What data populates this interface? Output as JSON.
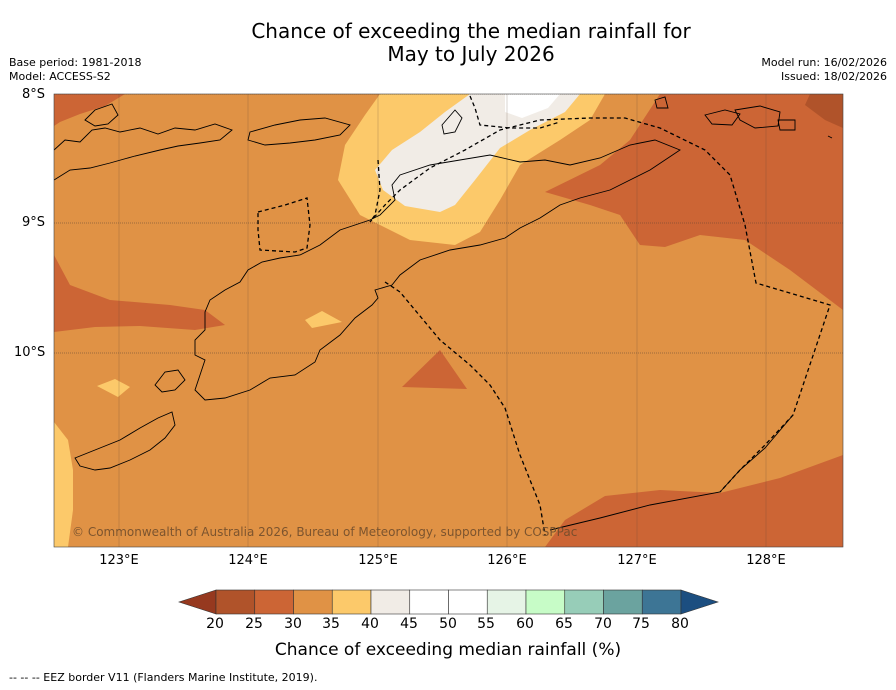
{
  "title": {
    "line1": "Chance of exceeding the median rainfall for",
    "line2": "May to July 2026"
  },
  "meta": {
    "base_period": "Base period: 1981-2018",
    "model": "Model: ACCESS-S2",
    "model_run": "Model run: 16/02/2026",
    "issued": "Issued: 18/02/2026"
  },
  "map": {
    "lat_labels": [
      "8°S",
      "9°S",
      "10°S"
    ],
    "lon_labels": [
      "123°E",
      "124°E",
      "125°E",
      "126°E",
      "127°E",
      "128°E"
    ],
    "copyright": "© Commonwealth of Australia 2026, Bureau of Meteorology, supported by COSPPac",
    "categories": {
      "c20_25": "#b0532a",
      "c25_30": "#cc6535",
      "c30_35": "#e09245",
      "c35_40": "#fcc96a",
      "c40_45": "#f1ece6",
      "c45_55": "#ffffff"
    }
  },
  "colorbar": {
    "ticks": [
      "20",
      "25",
      "30",
      "35",
      "40",
      "45",
      "50",
      "55",
      "60",
      "65",
      "70",
      "75",
      "80"
    ],
    "colors": [
      "#b0532a",
      "#cc6535",
      "#e09245",
      "#fcc96a",
      "#f1ece6",
      "#ffffff",
      "#ffffff",
      "#e6f4e6",
      "#c7fcc7",
      "#97cdb8",
      "#6ba39f",
      "#3d7595"
    ],
    "under_color": "#96391f",
    "over_color": "#1c4e80",
    "label": "Chance of exceeding median rainfall (%)"
  },
  "footer": "--  --  -- EEZ border V11 (Flanders Marine Institute, 2019)."
}
